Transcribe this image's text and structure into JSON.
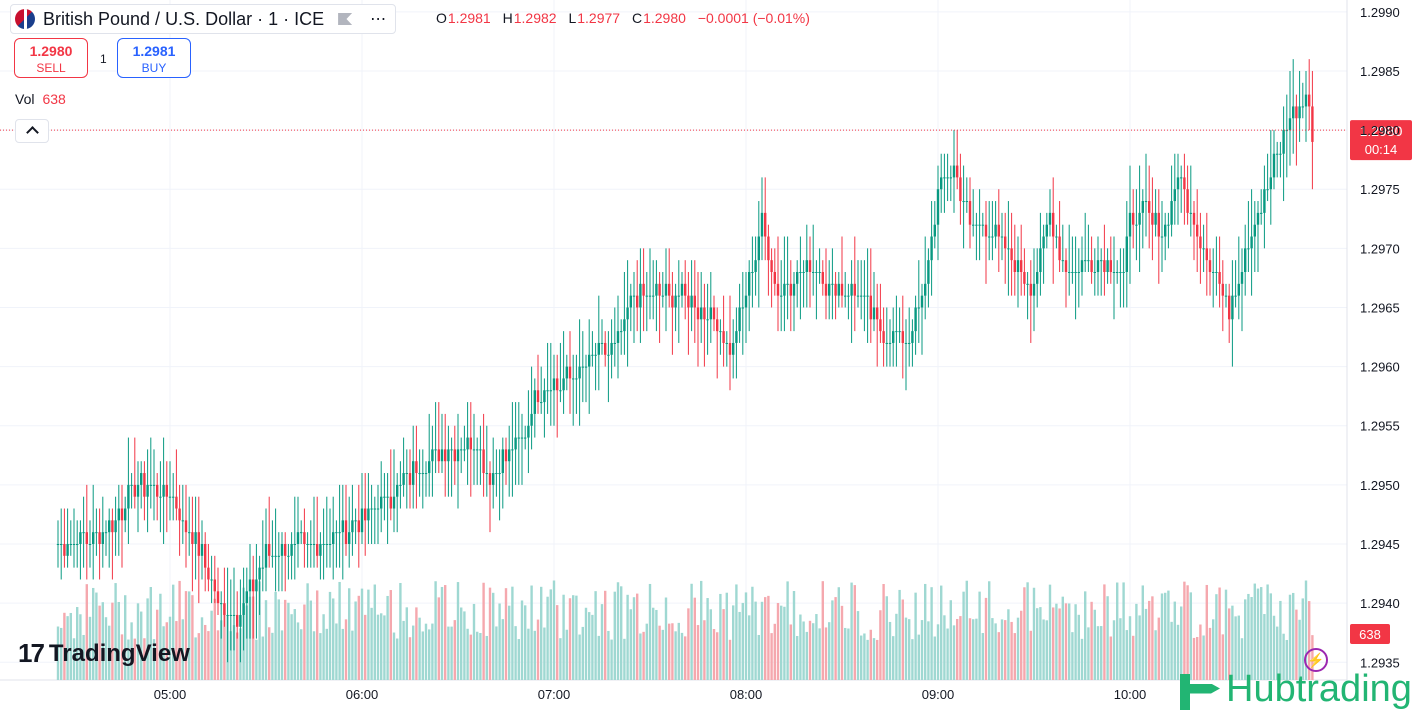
{
  "header": {
    "symbol_title": "British Pound / U.S. Dollar · 1 · ICE",
    "more_icon": "more-icon",
    "ohlc": {
      "open_label": "O",
      "open": "1.2981",
      "high_label": "H",
      "high": "1.2982",
      "low_label": "L",
      "low": "1.2977",
      "close_label": "C",
      "close": "1.2980",
      "change": "−0.0001 (−0.01%)"
    }
  },
  "trade": {
    "sell_price": "1.2980",
    "sell_label": "SELL",
    "quantity": "1",
    "buy_price": "1.2981",
    "buy_label": "BUY"
  },
  "volume_legend": {
    "label": "Vol",
    "value": "638"
  },
  "branding": {
    "tradingview": "TradingView",
    "hub": "Hubtrading"
  },
  "colors": {
    "up": "#089981",
    "down": "#f23645",
    "vol_up": "#9fd8d2",
    "vol_down": "#f5a8ae"
  },
  "chart_data": {
    "type": "candlestick",
    "price_axis": {
      "ticks": [
        "1.2990",
        "1.2985",
        "1.2980",
        "1.2975",
        "1.2970",
        "1.2965",
        "1.2960",
        "1.2955",
        "1.2950",
        "1.2945",
        "1.2940",
        "1.2935"
      ],
      "range": [
        1.29335,
        1.2991
      ]
    },
    "time_axis": {
      "ticks": [
        "05:00",
        "06:00",
        "07:00",
        "08:00",
        "09:00",
        "10:00"
      ]
    },
    "last_price_label": "1.2980",
    "countdown_label": "00:14",
    "last_volume_label": "638",
    "close_path": [
      [
        "04:25",
        1.2945
      ],
      [
        "04:40",
        1.2946
      ],
      [
        "04:50",
        1.295
      ],
      [
        "05:00",
        1.2949
      ],
      [
        "05:10",
        1.2944
      ],
      [
        "05:15",
        1.294
      ],
      [
        "05:22",
        1.2939
      ],
      [
        "05:30",
        1.2944
      ],
      [
        "05:45",
        1.2945
      ],
      [
        "06:00",
        1.2947
      ],
      [
        "06:08",
        1.2949
      ],
      [
        "06:20",
        1.2952
      ],
      [
        "06:35",
        1.2954
      ],
      [
        "06:40",
        1.2951
      ],
      [
        "06:50",
        1.2954
      ],
      [
        "06:55",
        1.2958
      ],
      [
        "07:05",
        1.2959
      ],
      [
        "07:20",
        1.2962
      ],
      [
        "07:25",
        1.2966
      ],
      [
        "07:40",
        1.2966
      ],
      [
        "07:50",
        1.2964
      ],
      [
        "07:55",
        1.2961
      ],
      [
        "08:00",
        1.2966
      ],
      [
        "08:05",
        1.2972
      ],
      [
        "08:10",
        1.2966
      ],
      [
        "08:20",
        1.2969
      ],
      [
        "08:25",
        1.2967
      ],
      [
        "08:35",
        1.2966
      ],
      [
        "08:42",
        1.2963
      ],
      [
        "08:50",
        1.2962
      ],
      [
        "08:55",
        1.2965
      ],
      [
        "09:00",
        1.2975
      ],
      [
        "09:05",
        1.2977
      ],
      [
        "09:10",
        1.2972
      ],
      [
        "09:15",
        1.2972
      ],
      [
        "09:25",
        1.2968
      ],
      [
        "09:30",
        1.2967
      ],
      [
        "09:35",
        1.2973
      ],
      [
        "09:40",
        1.2968
      ],
      [
        "09:50",
        1.2969
      ],
      [
        "09:58",
        1.2968
      ],
      [
        "10:00",
        1.2972
      ],
      [
        "10:05",
        1.2973
      ],
      [
        "10:10",
        1.2971
      ],
      [
        "10:15",
        1.2976
      ],
      [
        "10:20",
        1.2972
      ],
      [
        "10:25",
        1.2969
      ],
      [
        "10:31",
        1.2965
      ],
      [
        "10:36",
        1.297
      ],
      [
        "10:40",
        1.2973
      ],
      [
        "10:45",
        1.2977
      ],
      [
        "10:50",
        1.2981
      ],
      [
        "10:55",
        1.2983
      ],
      [
        "10:57",
        1.298
      ]
    ]
  }
}
